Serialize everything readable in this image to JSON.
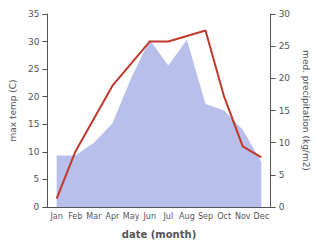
{
  "chart_data": {
    "type": "line",
    "xlabel": "date (month)",
    "ylabel": "max temp (C)",
    "y2label": "med. precipitation (kg/m2)",
    "categories": [
      "Jan",
      "Feb",
      "Mar",
      "Apr",
      "May",
      "Jun",
      "Jul",
      "Aug",
      "Sep",
      "Oct",
      "Nov",
      "Dec"
    ],
    "series": [
      {
        "type": "area",
        "color": "#b0b8e8",
        "axis": "y2",
        "values": [
          8,
          8,
          10,
          13,
          20,
          26,
          22,
          26,
          16,
          15,
          12,
          7
        ]
      },
      {
        "type": "line",
        "color": "#c0392b",
        "axis": "y",
        "values": [
          1.5,
          10.0,
          16.0,
          22.0,
          26.0,
          30.0,
          30.0,
          31.0,
          32.0,
          20.0,
          11.0,
          9.0
        ]
      }
    ],
    "ylim": [
      0,
      35
    ],
    "yticks": [
      0,
      5,
      10,
      15,
      20,
      25,
      30,
      35
    ],
    "y2lim": [
      0,
      30
    ],
    "y2ticks": [
      0,
      5,
      10,
      15,
      20,
      25,
      30
    ],
    "grid": false
  }
}
